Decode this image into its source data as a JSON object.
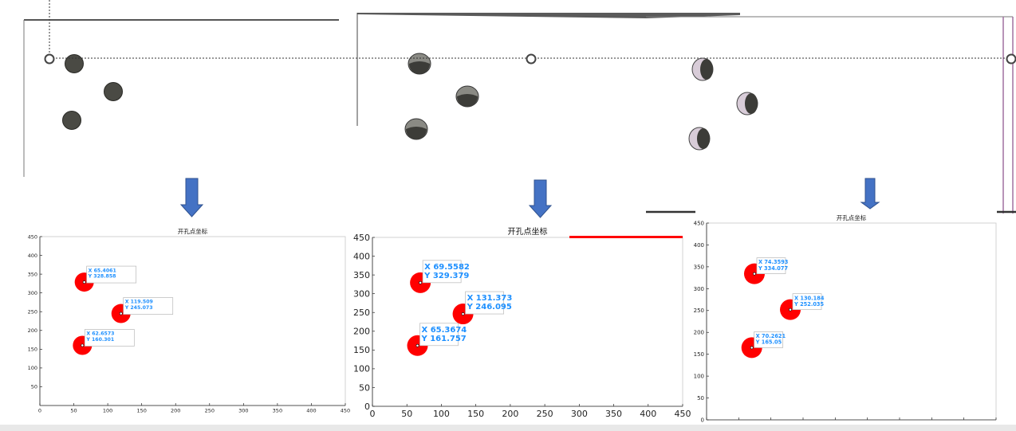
{
  "colors": {
    "background": "#ffffff",
    "hole_dark": "#4a4a44",
    "hole_lens": "#d8ccd8",
    "arrow": "#4472c4",
    "marker": "#ff0000",
    "datatip_text": "#1e90ff",
    "axis": "#262626"
  },
  "icons": [
    "down-arrow-icon",
    "down-arrow-icon",
    "down-arrow-icon"
  ],
  "chart_data": [
    {
      "type": "scatter",
      "title": "开孔点坐标",
      "xlim": [
        0,
        450
      ],
      "ylim": [
        0,
        450
      ],
      "xticks": [
        0,
        50,
        100,
        150,
        200,
        250,
        300,
        350,
        400,
        450
      ],
      "yticks": [
        50,
        100,
        150,
        200,
        250,
        300,
        350,
        400,
        450
      ],
      "points": [
        {
          "x": 65.4061,
          "y": 328.858,
          "tip_x": "X 65.4061",
          "tip_y": "Y 328.858"
        },
        {
          "x": 119.509,
          "y": 245.073,
          "tip_x": "X 119.509",
          "tip_y": "Y 245.073"
        },
        {
          "x": 62.6573,
          "y": 160.301,
          "tip_x": "X 62.6573",
          "tip_y": "Y 160.301"
        }
      ]
    },
    {
      "type": "scatter",
      "title": "开孔点坐标",
      "xlim": [
        0,
        450
      ],
      "ylim": [
        0,
        450
      ],
      "xticks": [
        0,
        50,
        100,
        150,
        200,
        250,
        300,
        350,
        400,
        450
      ],
      "yticks": [
        0,
        50,
        100,
        150,
        200,
        250,
        300,
        350,
        400,
        450
      ],
      "points": [
        {
          "x": 69.5582,
          "y": 329.379,
          "tip_x": "X 69.5582",
          "tip_y": "Y 329.379"
        },
        {
          "x": 131.373,
          "y": 246.095,
          "tip_x": "X 131.373",
          "tip_y": "Y 246.095"
        },
        {
          "x": 65.3674,
          "y": 161.757,
          "tip_x": "X 65.3674",
          "tip_y": "Y 161.757"
        }
      ]
    },
    {
      "type": "scatter",
      "title": "开孔点坐标",
      "xlim": [
        0,
        450
      ],
      "ylim": [
        0,
        450
      ],
      "xticks": [],
      "yticks": [
        0,
        50,
        100,
        150,
        200,
        250,
        300,
        350,
        400,
        450
      ],
      "points": [
        {
          "x": 74.3593,
          "y": 334.077,
          "tip_x": "X 74.3593",
          "tip_y": "Y 334.077"
        },
        {
          "x": 130.184,
          "y": 252.035,
          "tip_x": "X 130.184",
          "tip_y": "Y 252.035"
        },
        {
          "x": 70.2621,
          "y": 165.05,
          "tip_x": "X 70.2621",
          "tip_y": "Y 165.05"
        }
      ]
    }
  ]
}
